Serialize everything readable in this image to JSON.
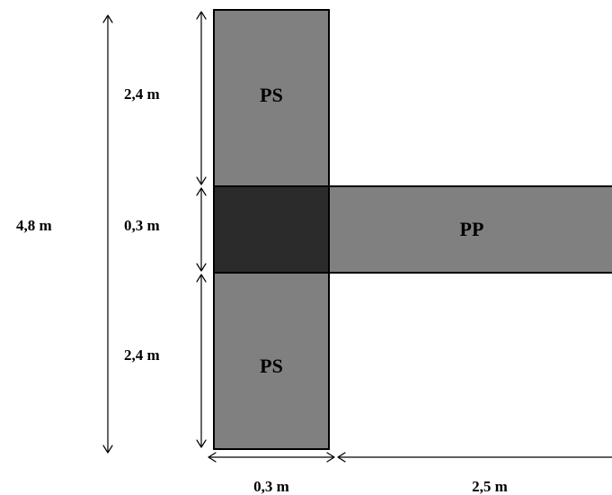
{
  "beams": {
    "ps_top": {
      "label": "PS"
    },
    "ps_bottom": {
      "label": "PS"
    },
    "pp": {
      "label": "PP"
    }
  },
  "dimensions": {
    "total_height": "4,8 m",
    "top_segment": "2,4 m",
    "middle_segment": "0,3 m",
    "bottom_segment": "2,4 m",
    "column_width": "0,3 m",
    "beam_length": "2,5 m"
  },
  "colors": {
    "secondary_beam": "#808080",
    "primary_beam": "#808080",
    "intersection": "#2b2b2b",
    "outline": "#000000"
  }
}
